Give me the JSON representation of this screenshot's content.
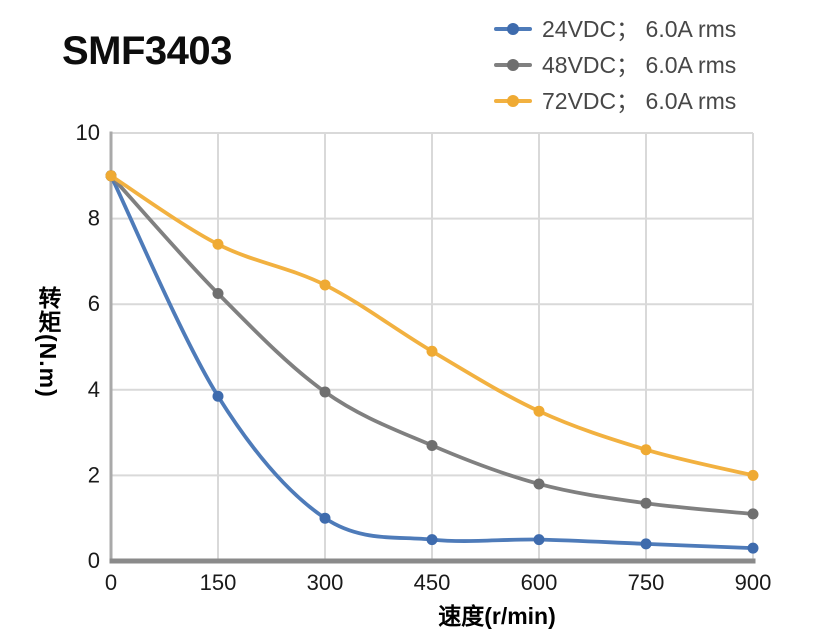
{
  "chart_data": {
    "type": "line",
    "title": "SMF3403",
    "xlabel": "速度(r/min)",
    "ylabel": "转矩(N.m)",
    "x": [
      0,
      150,
      300,
      450,
      600,
      750,
      900
    ],
    "series": [
      {
        "name": "24VDC； 6.0A rms",
        "color": "#4E7BB9",
        "marker_color": "#3E6BAD",
        "values": [
          9.0,
          3.85,
          1.0,
          0.5,
          0.5,
          0.4,
          0.3
        ]
      },
      {
        "name": "48VDC； 6.0A rms",
        "color": "#808080",
        "marker_color": "#6F6F6F",
        "values": [
          9.0,
          6.25,
          3.95,
          2.7,
          1.8,
          1.35,
          1.1
        ]
      },
      {
        "name": "72VDC； 6.0A rms",
        "color": "#F2B140",
        "marker_color": "#EFAA33",
        "values": [
          9.0,
          7.4,
          6.45,
          4.9,
          3.5,
          2.6,
          2.0
        ]
      }
    ],
    "xlim": [
      0,
      900
    ],
    "ylim": [
      0,
      10
    ],
    "xticks": [
      0,
      150,
      300,
      450,
      600,
      750,
      900
    ],
    "yticks": [
      0,
      2,
      4,
      6,
      8,
      10
    ],
    "grid": true,
    "legend_position": "top-right",
    "colors": {
      "grid": "#D9D9D9",
      "x_axis": "#8A8A8A",
      "y_axis": "#A9A9A9",
      "tick_text": "#1A1A1A"
    }
  }
}
